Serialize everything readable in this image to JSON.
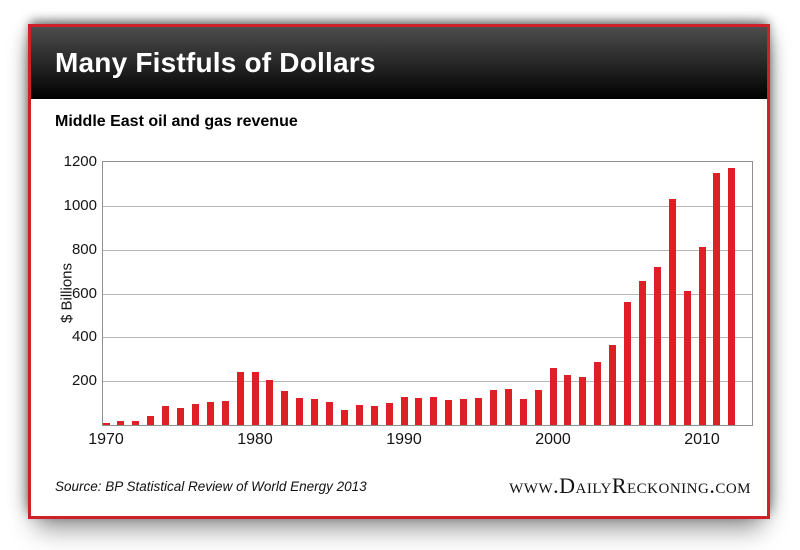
{
  "header": {
    "title": "Many Fistfuls of Dollars"
  },
  "chart_data": {
    "type": "bar",
    "title": "Middle East oil and gas revenue",
    "ylabel": "$ Billions",
    "ylim": [
      0,
      1200
    ],
    "yticks": [
      200,
      400,
      600,
      800,
      1000,
      1200
    ],
    "xticks": [
      1970,
      1980,
      1990,
      2000,
      2010
    ],
    "categories": [
      1970,
      1971,
      1972,
      1973,
      1974,
      1975,
      1976,
      1977,
      1978,
      1979,
      1980,
      1981,
      1982,
      1983,
      1984,
      1985,
      1986,
      1987,
      1988,
      1989,
      1990,
      1991,
      1992,
      1993,
      1994,
      1995,
      1996,
      1997,
      1998,
      1999,
      2000,
      2001,
      2002,
      2003,
      2004,
      2005,
      2006,
      2007,
      2008,
      2009,
      2010,
      2011,
      2012
    ],
    "values": [
      10,
      16,
      18,
      42,
      88,
      78,
      98,
      104,
      110,
      240,
      243,
      205,
      155,
      122,
      118,
      105,
      68,
      92,
      86,
      99,
      130,
      124,
      126,
      116,
      120,
      125,
      158,
      162,
      118,
      158,
      258,
      228,
      218,
      288,
      365,
      560,
      658,
      720,
      1032,
      610,
      810,
      1152,
      1172
    ],
    "bar_color": "#df1f26",
    "grid": "horizontal",
    "legend_position": "none"
  },
  "footer": {
    "source": "Source: BP Statistical Review of World Energy 2013",
    "website": "www.DailyReckoning.com"
  },
  "colors": {
    "accent_red": "#df1f26",
    "border_red": "#cd2129",
    "header_bg": "#1a1a1a"
  }
}
